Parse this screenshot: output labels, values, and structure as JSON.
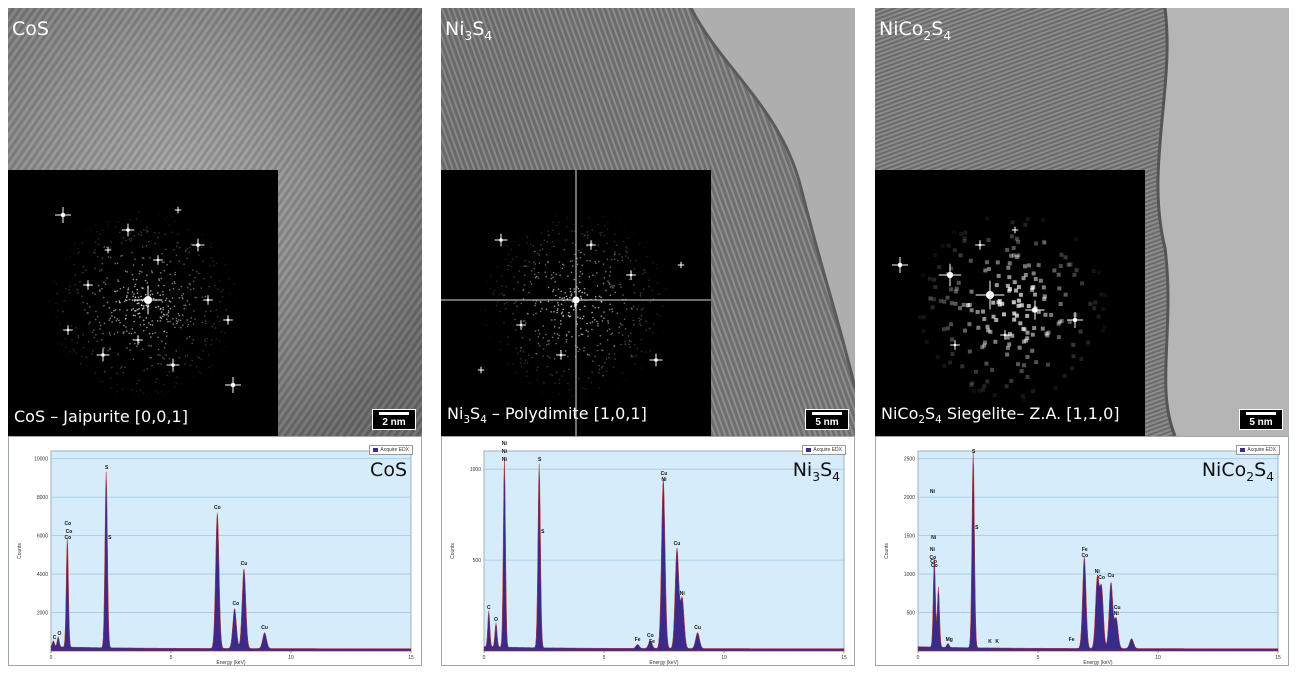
{
  "panels": [
    {
      "material_html": "CoS",
      "fft_label_html": "CoS – Jaipurite [0,0,1]",
      "scale": "2 nm",
      "eds_title_html": "CoS",
      "legend": "Acquire EDX",
      "y_ticks": [
        "10000",
        "8000",
        "6000",
        "4000",
        "2000"
      ],
      "x_ticks": [
        "0",
        "5",
        "10",
        "15"
      ],
      "x_label": "Energy (keV)",
      "y_label": "Counts",
      "peak_labels": [
        "Co",
        "Co",
        "Co",
        "S",
        "S",
        "Co",
        "Cu",
        "Co",
        "Cu",
        "C",
        "O"
      ]
    },
    {
      "material_html": "Ni<sub>3</sub>S<sub>4</sub>",
      "fft_label_html": "Ni<sub>3</sub>S<sub>4</sub> – Polydimite [1,0,1]",
      "scale": "5 nm",
      "eds_title_html": "Ni<sub>3</sub>S<sub>4</sub>",
      "legend": "Acquire EDX",
      "y_ticks": [
        "1000",
        "500"
      ],
      "x_ticks": [
        "0",
        "5",
        "10",
        "15"
      ],
      "x_label": "Energy (keV)",
      "y_label": "Counts",
      "peak_labels": [
        "Ni",
        "Ni",
        "Ni",
        "S",
        "S",
        "Cu",
        "Ni",
        "Cu",
        "Ni",
        "Cu",
        "C",
        "O",
        "Fe",
        "Co",
        "Fe"
      ]
    },
    {
      "material_html": "NiCo<sub>2</sub>S<sub>4</sub>",
      "fft_label_html": "NiCo<sub>2</sub>S<sub>4</sub> Siegelite– Z.A. [1,1,0]",
      "scale": "5 nm",
      "eds_title_html": "NiCo<sub>2</sub>S<sub>4</sub>",
      "legend": "Acquire EDX",
      "y_ticks": [
        "2500",
        "2000",
        "1500",
        "1000",
        "500"
      ],
      "x_ticks": [
        "0",
        "5",
        "10",
        "15"
      ],
      "x_label": "Energy (keV)",
      "y_label": "Counts",
      "peak_labels": [
        "Ni",
        "Ni",
        "Ni",
        "Co",
        "Co",
        "Co",
        "S",
        "S",
        "Fe",
        "Co",
        "Ni",
        "Co",
        "Cu",
        "Ni",
        "Cu",
        "Mg",
        "K",
        "K",
        "Fe"
      ]
    }
  ]
}
